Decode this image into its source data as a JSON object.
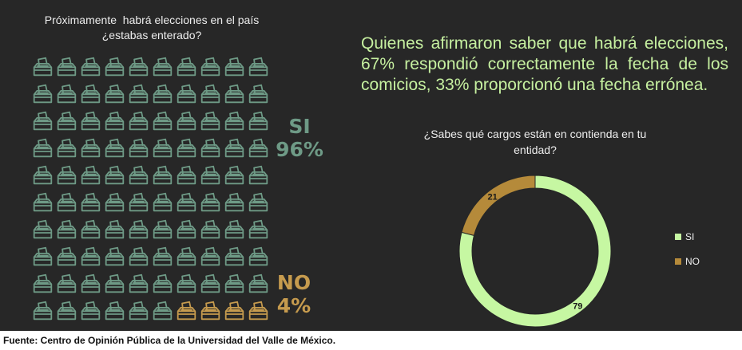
{
  "question1": {
    "line1": "Próximamente  habrá elecciones en el país",
    "line2": "¿estabas enterado?"
  },
  "pictogram": {
    "total_icons": 100,
    "yes_icons": 96,
    "no_icons": 4,
    "icon": "ballot-box-icon",
    "yes_color": "#6e9a86",
    "no_color": "#c69b4e"
  },
  "si_block": {
    "label": "SI",
    "value": "96%",
    "color": "#6e9a86"
  },
  "no_block": {
    "label": "NO",
    "value": "4%",
    "color": "#c69b4e"
  },
  "statement": "Quienes afirmaron saber que habrá elecciones, 67% respondió correctamente la fecha de los comicios, 33% proporcionó una fecha errónea.",
  "question2": {
    "line1": "¿Sabes qué cargos están en contienda en tu",
    "line2": "entidad?"
  },
  "chart_data": [
    {
      "type": "pictogram",
      "categories": [
        "SI",
        "NO"
      ],
      "values": [
        96,
        4
      ],
      "unit": "%",
      "colors": [
        "#6e9a86",
        "#c69b4e"
      ]
    },
    {
      "type": "pie",
      "variant": "donut",
      "categories": [
        "SI",
        "NO"
      ],
      "values": [
        79,
        21
      ],
      "colors": [
        "#c6f7a2",
        "#b58a3a"
      ],
      "data_labels": [
        "79",
        "21"
      ],
      "legend": "right"
    }
  ],
  "legend": [
    {
      "label": "SI",
      "color": "#c6f7a2"
    },
    {
      "label": "NO",
      "color": "#b58a3a"
    }
  ],
  "footer": "Fuente: Centro de Opinión Pública de la Universidad del Valle de México."
}
